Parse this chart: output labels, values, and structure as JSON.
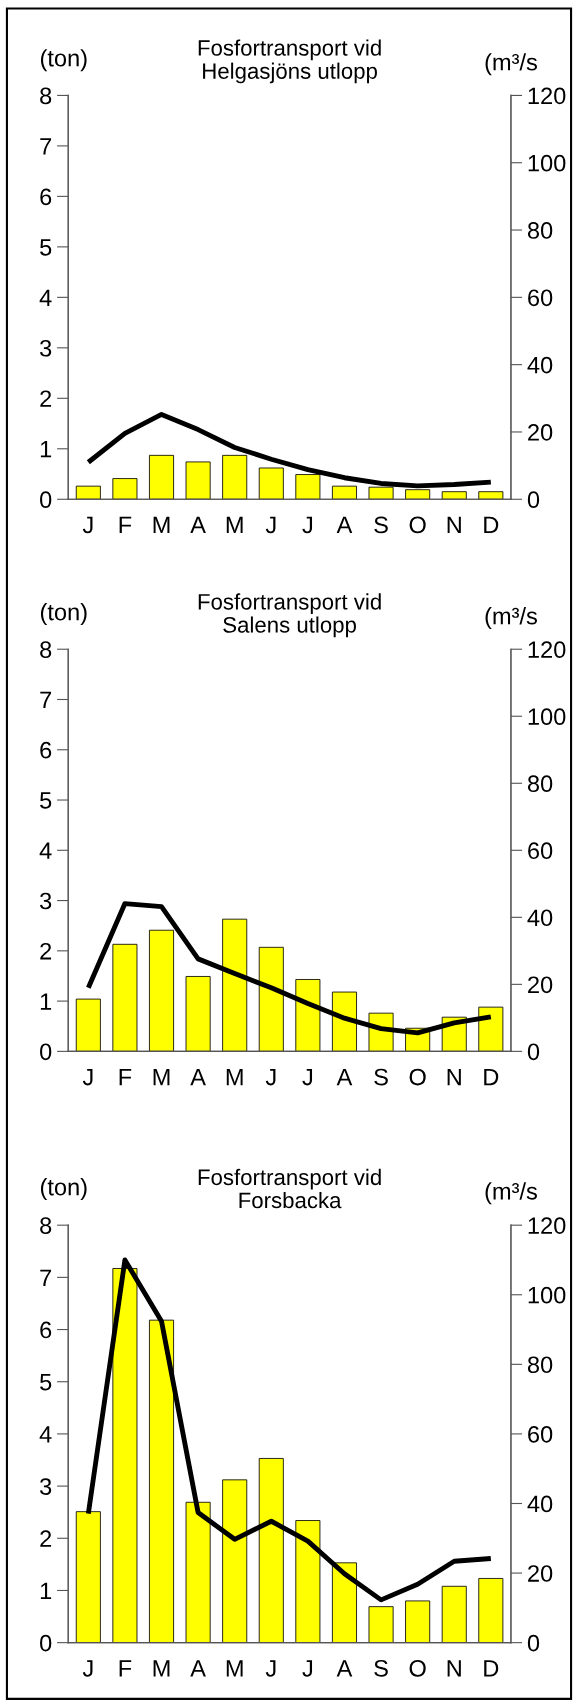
{
  "chart_data": [
    {
      "type": "bar",
      "title": "Fosfortransport vid\nHelgasjöns utlopp",
      "ylabel": "(ton)",
      "y2label": "(m³/s",
      "categories": [
        "J",
        "F",
        "M",
        "A",
        "M",
        "J",
        "J",
        "A",
        "S",
        "O",
        "N",
        "D"
      ],
      "series": [
        {
          "color": "#ffff00",
          "values": [
            0.26,
            0.41,
            0.87,
            0.74,
            0.87,
            0.62,
            0.49,
            0.26,
            0.24,
            0.19,
            0.15,
            0.15
          ]
        },
        {
          "type": "line",
          "axis": "y2",
          "color": "#000000",
          "values": [
            11,
            19.6,
            25.2,
            20.7,
            15.4,
            11.9,
            8.8,
            6.4,
            4.7,
            4.0,
            4.4,
            5.1
          ]
        }
      ],
      "ylim": [
        0,
        8
      ],
      "yticks": [
        0,
        1,
        2,
        3,
        4,
        5,
        6,
        7,
        8
      ],
      "y2lim": [
        0,
        120
      ],
      "y2ticks": [
        0,
        20,
        40,
        60,
        80,
        100,
        120
      ],
      "grid": false
    },
    {
      "type": "bar",
      "title": "Fosfortransport vid\nSalens utlopp",
      "ylabel": "(ton)",
      "y2label": "(m³/s",
      "categories": [
        "J",
        "F",
        "M",
        "A",
        "M",
        "J",
        "J",
        "A",
        "S",
        "O",
        "N",
        "D"
      ],
      "series": [
        {
          "color": "#ffff00",
          "values": [
            1.04,
            2.13,
            2.41,
            1.49,
            2.63,
            2.07,
            1.43,
            1.18,
            0.76,
            0.46,
            0.68,
            0.88
          ]
        },
        {
          "type": "line",
          "axis": "y2",
          "color": "#000000",
          "values": [
            19.0,
            44.1,
            43.2,
            27.6,
            23.2,
            19.0,
            14.3,
            9.9,
            6.8,
            5.5,
            8.5,
            10.3
          ]
        }
      ],
      "ylim": [
        0,
        8
      ],
      "yticks": [
        0,
        1,
        2,
        3,
        4,
        5,
        6,
        7,
        8
      ],
      "y2lim": [
        0,
        120
      ],
      "y2ticks": [
        0,
        20,
        40,
        60,
        80,
        100,
        120
      ],
      "grid": false
    },
    {
      "type": "bar",
      "title": "Fosfortransport vid\nForsbacka",
      "ylabel": "(ton)",
      "y2label": "(m³/s",
      "categories": [
        "J",
        "F",
        "M",
        "A",
        "M",
        "J",
        "J",
        "A",
        "S",
        "O",
        "N",
        "D"
      ],
      "series": [
        {
          "color": "#ffff00",
          "values": [
            2.51,
            7.17,
            6.18,
            2.69,
            3.12,
            3.53,
            2.34,
            1.53,
            0.69,
            0.8,
            1.08,
            1.23
          ]
        },
        {
          "type": "line",
          "axis": "y2",
          "color": "#000000",
          "values": [
            37.1,
            110.0,
            92.4,
            37.4,
            29.7,
            34.9,
            29.2,
            19.8,
            12.3,
            16.8,
            23.4,
            24.2
          ]
        }
      ],
      "ylim": [
        0,
        8
      ],
      "yticks": [
        0,
        1,
        2,
        3,
        4,
        5,
        6,
        7,
        8
      ],
      "y2lim": [
        0,
        120
      ],
      "y2ticks": [
        0,
        20,
        40,
        60,
        80,
        100,
        120
      ],
      "grid": false
    }
  ]
}
